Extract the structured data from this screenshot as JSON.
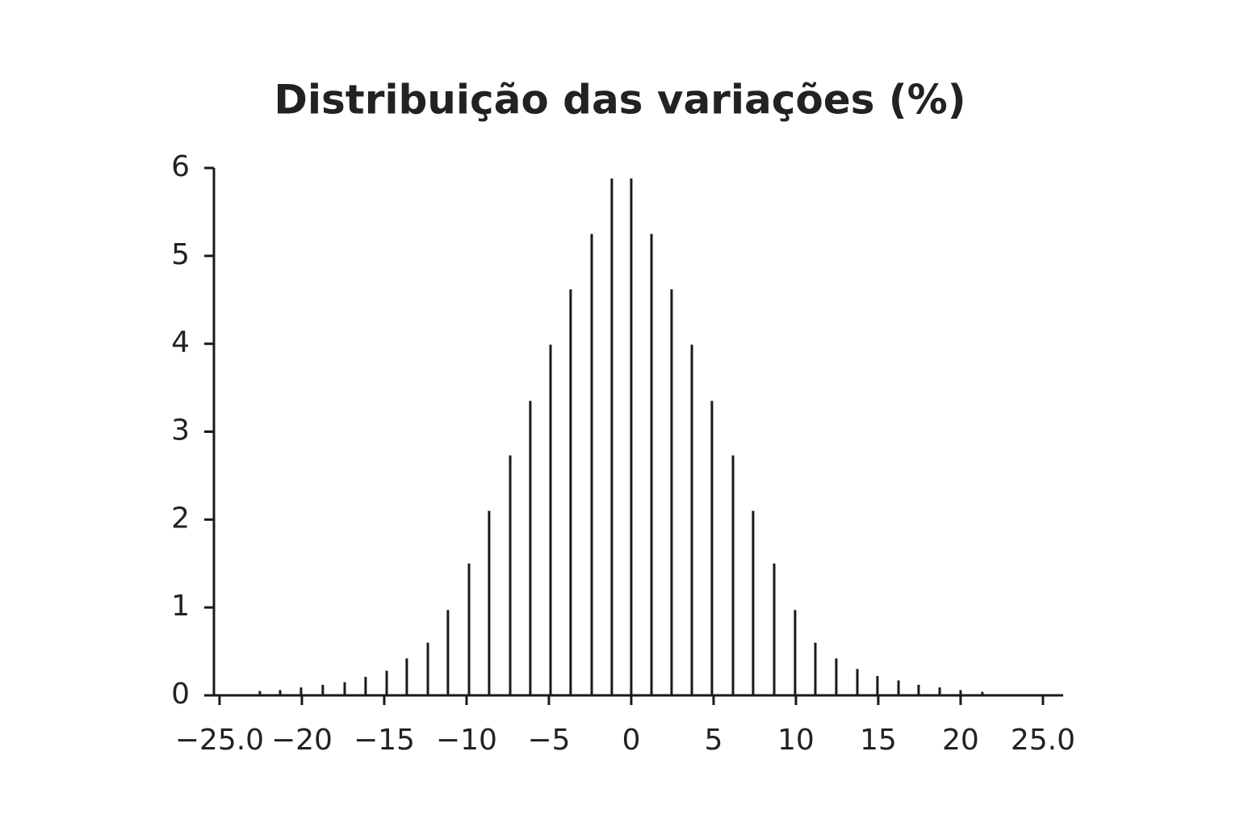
{
  "chart_data": {
    "type": "stem",
    "title": "Distribuição das variações (%)",
    "x": [
      -22.55,
      -21.32,
      -20.05,
      -18.73,
      -17.4,
      -16.13,
      -14.85,
      -13.63,
      -12.35,
      -11.13,
      -9.85,
      -8.63,
      -7.35,
      -6.13,
      -4.9,
      -3.68,
      -2.4,
      -1.18,
      0,
      1.23,
      2.45,
      3.68,
      4.9,
      6.18,
      7.4,
      8.68,
      9.95,
      11.18,
      12.45,
      13.73,
      14.95,
      16.23,
      17.45,
      18.73,
      20,
      21.32
    ],
    "values": [
      0.05,
      0.06,
      0.09,
      0.12,
      0.15,
      0.21,
      0.28,
      0.42,
      0.6,
      0.97,
      1.5,
      2.1,
      2.73,
      3.35,
      3.99,
      4.62,
      5.25,
      5.88,
      5.88,
      5.25,
      4.62,
      3.99,
      3.35,
      2.73,
      2.1,
      1.5,
      0.97,
      0.6,
      0.42,
      0.3,
      0.22,
      0.17,
      0.12,
      0.09,
      0.06,
      0.04
    ],
    "color": "#1a1a1a",
    "xlim": [
      -25.34,
      26.23
    ],
    "xticks": [
      {
        "value": -25,
        "label": "−25.0"
      },
      {
        "value": -20,
        "label": "−20"
      },
      {
        "value": -15,
        "label": "−15"
      },
      {
        "value": -10,
        "label": "−10"
      },
      {
        "value": -5,
        "label": "−5"
      },
      0,
      5,
      10,
      15,
      20,
      {
        "value": 25,
        "label": "25.0"
      }
    ],
    "ylim": [
      0,
      6
    ],
    "yticks": [
      0,
      1,
      2,
      3,
      4,
      5,
      6
    ]
  }
}
